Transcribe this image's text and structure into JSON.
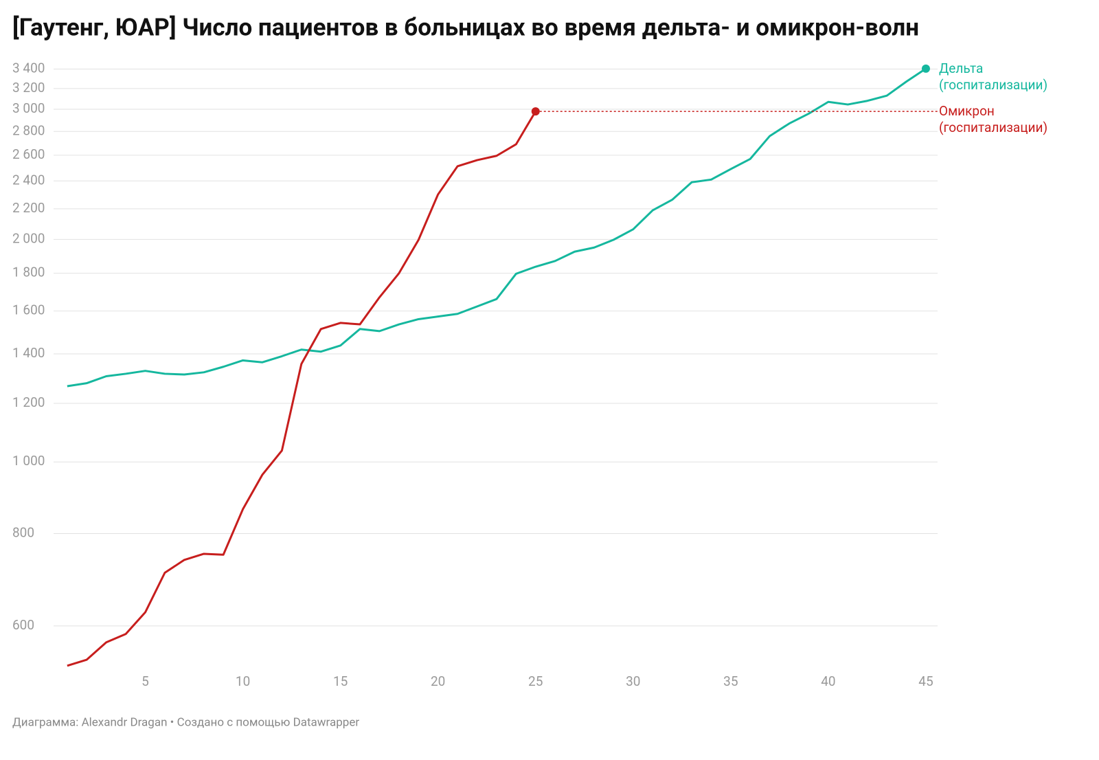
{
  "chart_data": {
    "type": "line",
    "title": "[Гаутенг, ЮАР] Число пациентов в больницах во время дельта- и омикрон-волн",
    "footer": "Диаграмма: Alexandr Dragan • Создано с помощью Datawrapper",
    "log_scale_y": true,
    "grid": true,
    "xlim": [
      0.3,
      45.6
    ],
    "xticks": [
      5,
      10,
      15,
      20,
      25,
      30,
      35,
      40,
      45
    ],
    "ylim": [
      523,
      3515
    ],
    "yticks": [
      600,
      800,
      {
        "value": 1000,
        "label": "1 000"
      },
      {
        "value": 1200,
        "label": "1 200"
      },
      {
        "value": 1400,
        "label": "1 400"
      },
      {
        "value": 1600,
        "label": "1 600"
      },
      {
        "value": 1800,
        "label": "1 800"
      },
      {
        "value": 2000,
        "label": "2 000"
      },
      {
        "value": 2200,
        "label": "2 200"
      },
      {
        "value": 2400,
        "label": "2 400"
      },
      {
        "value": 2600,
        "label": "2 600"
      },
      {
        "value": 2800,
        "label": "2 800"
      },
      {
        "value": 3000,
        "label": "3 000"
      },
      {
        "value": 3200,
        "label": "3 200"
      },
      {
        "value": 3400,
        "label": "3 400"
      }
    ],
    "series": [
      {
        "name": "Дельта (госпитализации)",
        "color": "#15b79e",
        "x": [
          1,
          2,
          3,
          4,
          5,
          6,
          7,
          8,
          9,
          10,
          11,
          12,
          13,
          14,
          15,
          16,
          17,
          18,
          19,
          20,
          21,
          22,
          23,
          24,
          25,
          26,
          27,
          28,
          29,
          30,
          31,
          32,
          33,
          34,
          35,
          36,
          37,
          38,
          39,
          40,
          41,
          42,
          43,
          44,
          45
        ],
        "values": [
          1266,
          1278,
          1306,
          1316,
          1328,
          1316,
          1313,
          1322,
          1345,
          1372,
          1364,
          1390,
          1419,
          1410,
          1437,
          1513,
          1503,
          1535,
          1560,
          1573,
          1586,
          1623,
          1661,
          1797,
          1837,
          1870,
          1925,
          1950,
          1998,
          2064,
          2190,
          2263,
          2390,
          2410,
          2490,
          2570,
          2760,
          2870,
          2960,
          3070,
          3045,
          3080,
          3130,
          3270,
          3405
        ]
      },
      {
        "name": "Омикрон (госпитализации)",
        "color": "#c71e1d",
        "x": [
          1,
          2,
          3,
          4,
          5,
          6,
          7,
          8,
          9,
          10,
          11,
          12,
          13,
          14,
          15,
          16,
          17,
          18,
          19,
          20,
          21,
          22,
          23,
          24,
          25
        ],
        "values": [
          530,
          540,
          570,
          585,
          626,
          708,
          737,
          751,
          749,
          863,
          961,
          1036,
          1357,
          1513,
          1542,
          1535,
          1670,
          1800,
          1997,
          2301,
          2512,
          2560,
          2595,
          2690,
          2980
        ]
      }
    ]
  }
}
